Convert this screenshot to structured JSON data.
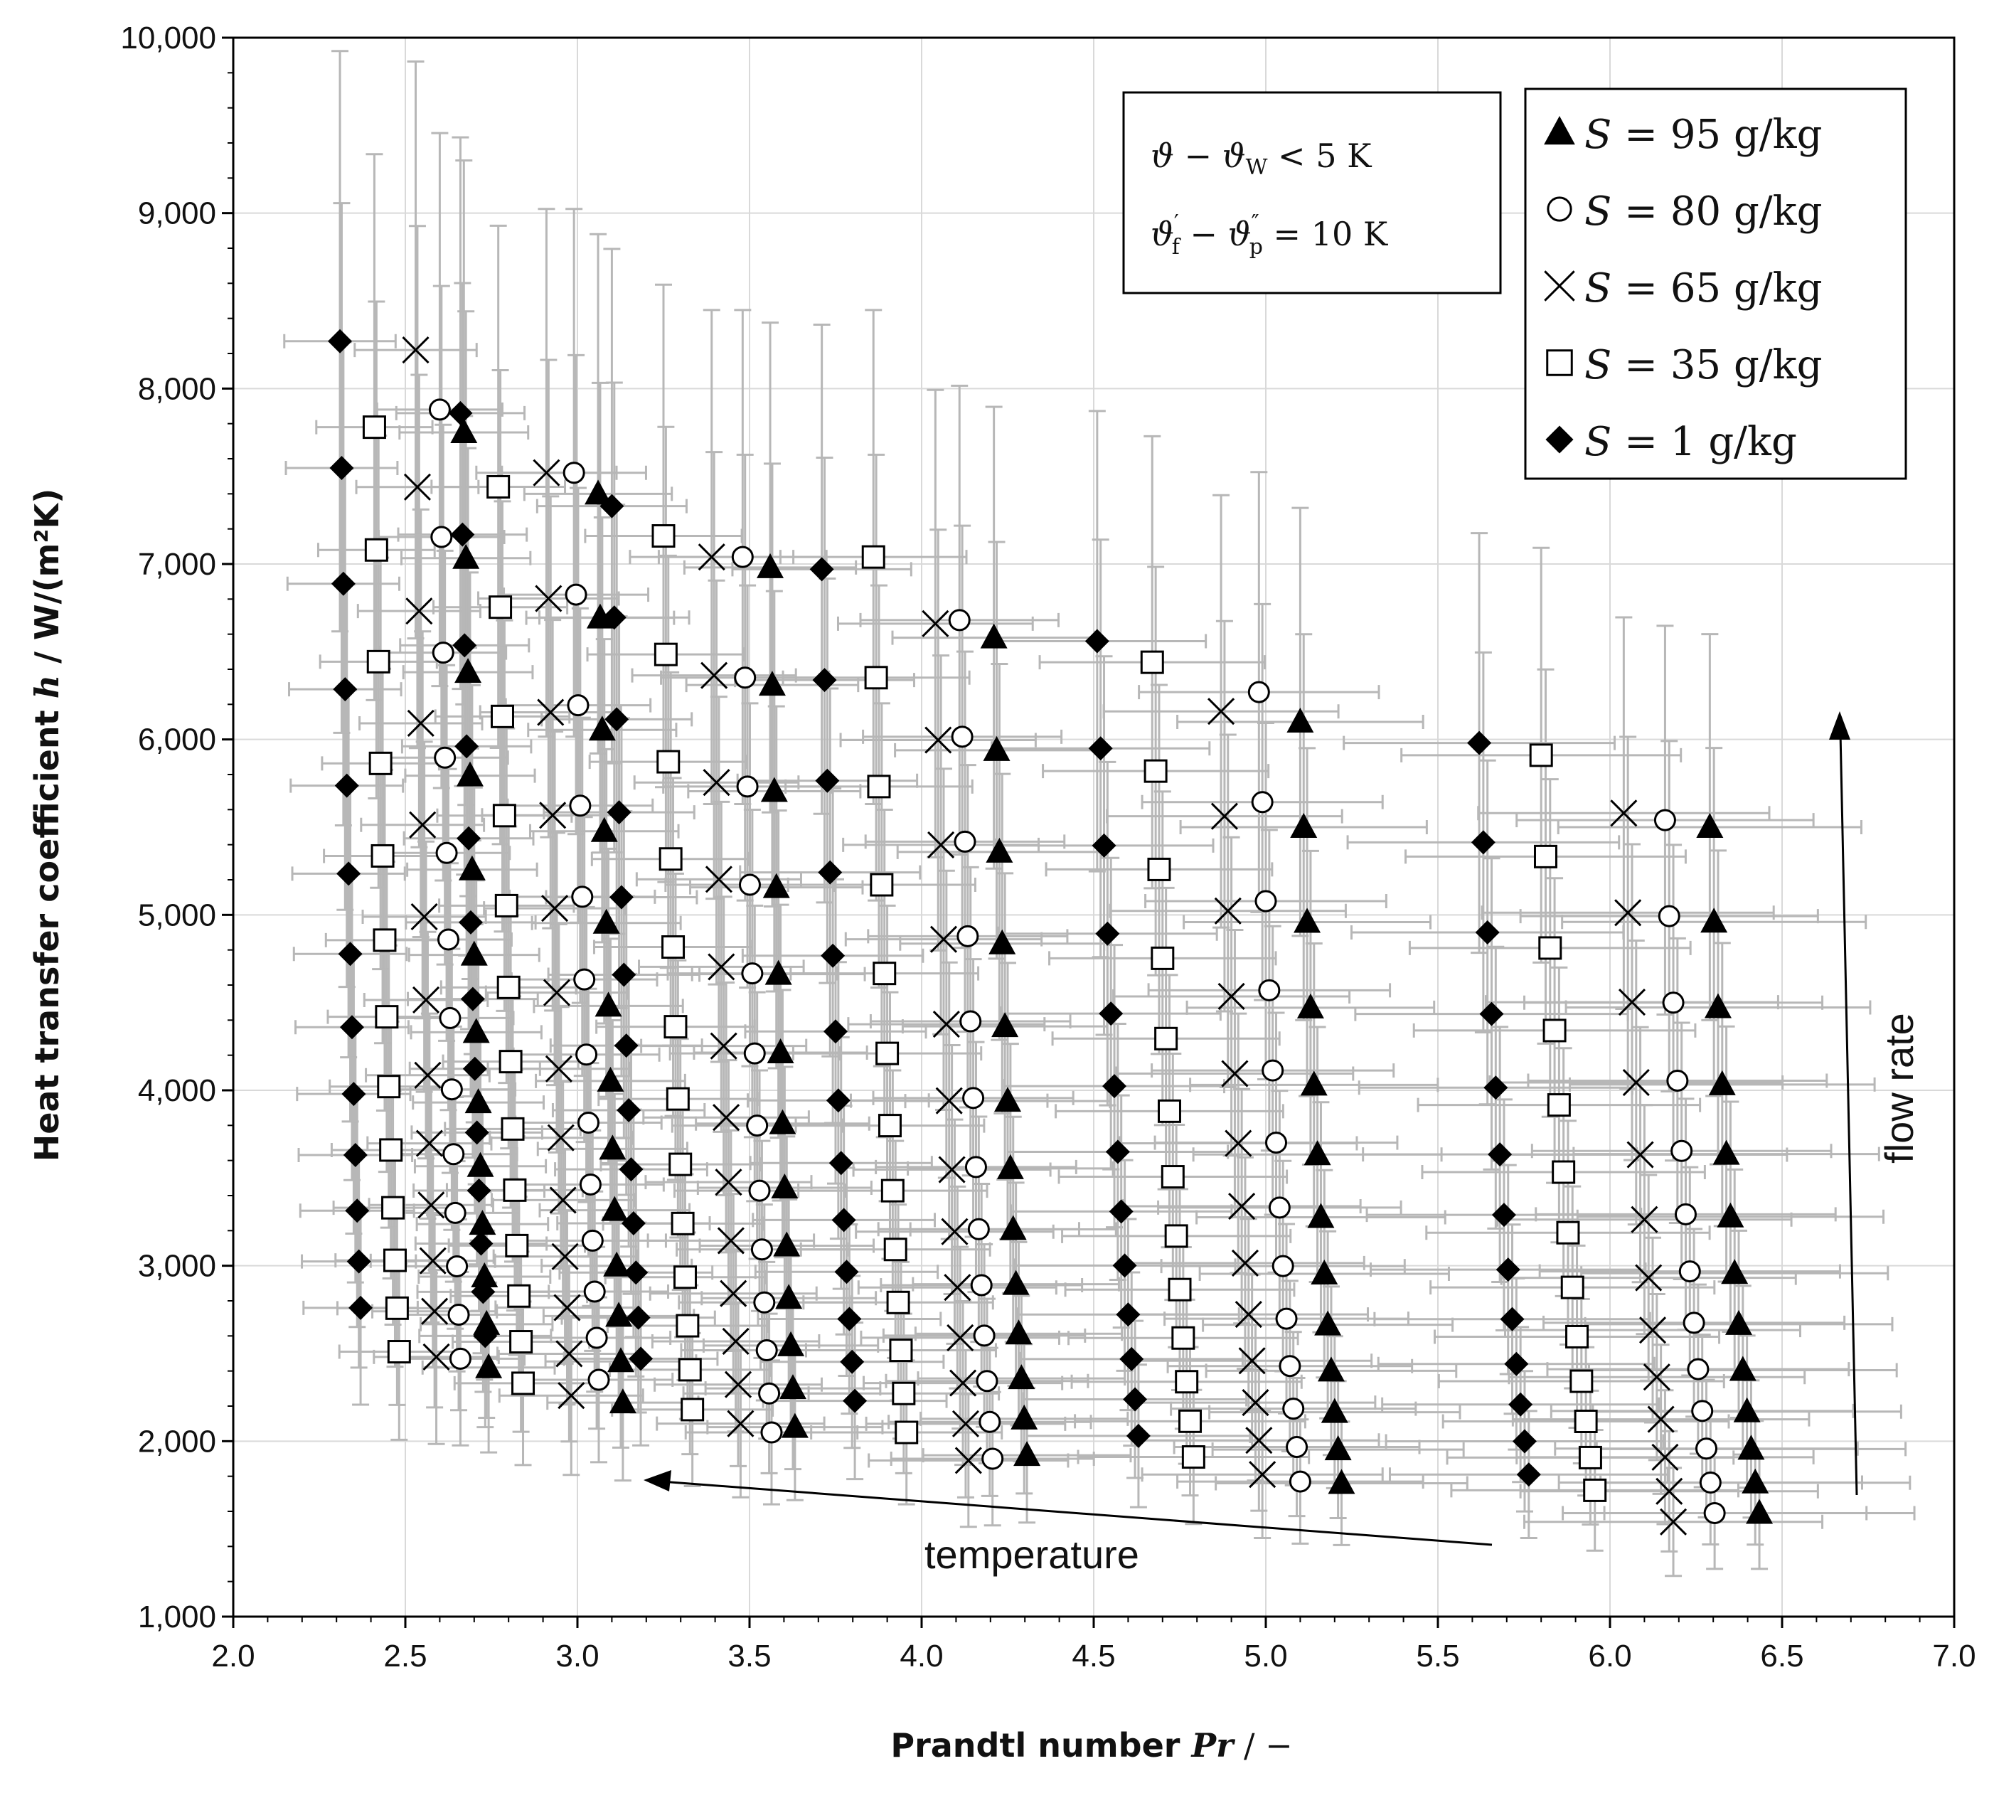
{
  "chart_data": {
    "type": "scatter",
    "x_label": {
      "text": "Prandtl number ",
      "var": "Pr",
      "unit": " / −"
    },
    "y_label": {
      "text": "Heat transfer coefficient ",
      "var": "h",
      "unit": " / W/(m²K)"
    },
    "xlim": [
      2.0,
      7.0
    ],
    "ylim": [
      1000,
      10000
    ],
    "x_ticks": [
      2.0,
      2.5,
      3.0,
      3.5,
      4.0,
      4.5,
      5.0,
      5.5,
      6.0,
      6.5,
      7.0
    ],
    "x_tick_labels": [
      "2.0",
      "2.5",
      "3.0",
      "3.5",
      "4.0",
      "4.5",
      "5.0",
      "5.5",
      "6.0",
      "6.5",
      "7.0"
    ],
    "y_ticks": [
      1000,
      2000,
      3000,
      4000,
      5000,
      6000,
      7000,
      8000,
      9000,
      10000
    ],
    "y_tick_labels": [
      "1,000",
      "2,000",
      "3,000",
      "4,000",
      "5,000",
      "6,000",
      "7,000",
      "8,000",
      "9,000",
      "10,000"
    ],
    "grid": true,
    "conditions": {
      "line1": {
        "lhs": "ϑ − ϑ",
        "sub": "W",
        "rhs": " < 5 K"
      },
      "line2": {
        "a": "ϑ",
        "a_sup": "′",
        "a_sub": "f",
        "b": " − ϑ",
        "b_sup": "″",
        "b_sub": "p",
        "rhs": " = 10 K"
      }
    },
    "annotations": {
      "temperature": "temperature",
      "flow_rate": "flow rate"
    },
    "series": [
      {
        "name": "S = 95 g/kg",
        "var": "S",
        "label_rest": " = 95 g/kg",
        "marker": "triangle",
        "groups": [
          {
            "x0": 2.67,
            "dx": 0.006,
            "y_top": 7750,
            "y_bottom": 2420
          },
          {
            "x0": 3.06,
            "dx": 0.006,
            "y_top": 7400,
            "y_bottom": 2220
          },
          {
            "x0": 3.56,
            "dx": 0.006,
            "y_top": 6980,
            "y_bottom": 2080
          },
          {
            "x0": 4.21,
            "dx": 0.008,
            "y_top": 6580,
            "y_bottom": 1920
          },
          {
            "x0": 5.1,
            "dx": 0.01,
            "y_top": 6100,
            "y_bottom": 1760
          },
          {
            "x0": 6.29,
            "dx": 0.012,
            "y_top": 5500,
            "y_bottom": 1590
          }
        ]
      },
      {
        "name": "S = 80 g/kg",
        "var": "S",
        "label_rest": " = 80 g/kg",
        "marker": "circle",
        "groups": [
          {
            "x0": 2.6,
            "dx": 0.005,
            "y_top": 7880,
            "y_bottom": 2470
          },
          {
            "x0": 2.99,
            "dx": 0.006,
            "y_top": 7520,
            "y_bottom": 2350
          },
          {
            "x0": 3.48,
            "dx": 0.007,
            "y_top": 7040,
            "y_bottom": 2050
          },
          {
            "x0": 4.11,
            "dx": 0.008,
            "y_top": 6680,
            "y_bottom": 1900
          },
          {
            "x0": 4.98,
            "dx": 0.01,
            "y_top": 6270,
            "y_bottom": 1770
          },
          {
            "x0": 6.16,
            "dx": 0.012,
            "y_top": 5540,
            "y_bottom": 1590
          }
        ]
      },
      {
        "name": "S = 65 g/kg",
        "var": "S",
        "label_rest": " = 65 g/kg",
        "marker": "x",
        "groups": [
          {
            "x0": 2.53,
            "dx": 0.005,
            "y_top": 8220,
            "y_bottom": 2480
          },
          {
            "x0": 2.91,
            "dx": 0.006,
            "y_top": 7520,
            "y_bottom": 2260
          },
          {
            "x0": 3.39,
            "dx": 0.007,
            "y_top": 7040,
            "y_bottom": 2100
          },
          {
            "x0": 4.04,
            "dx": 0.008,
            "y_top": 6660,
            "y_bottom": 1890
          },
          {
            "x0": 4.87,
            "dx": 0.01,
            "y_top": 6160,
            "y_bottom": 1810
          },
          {
            "x0": 6.04,
            "dx": 0.012,
            "y_top": 5580,
            "y_bottom": 1540
          }
        ]
      },
      {
        "name": "S = 35 g/kg",
        "var": "S",
        "label_rest": " = 35 g/kg",
        "marker": "square",
        "groups": [
          {
            "x0": 2.41,
            "dx": 0.006,
            "y_top": 7780,
            "y_bottom": 2510
          },
          {
            "x0": 2.77,
            "dx": 0.006,
            "y_top": 7440,
            "y_bottom": 2330
          },
          {
            "x0": 3.25,
            "dx": 0.007,
            "y_top": 7160,
            "y_bottom": 2180
          },
          {
            "x0": 3.86,
            "dx": 0.008,
            "y_top": 7040,
            "y_bottom": 2050
          },
          {
            "x0": 4.67,
            "dx": 0.01,
            "y_top": 6440,
            "y_bottom": 1910
          },
          {
            "x0": 5.8,
            "dx": 0.013,
            "y_top": 5910,
            "y_bottom": 1720
          }
        ]
      },
      {
        "name": "S = 1 g/kg",
        "var": "S",
        "label_rest": " = 1 g/kg",
        "marker": "diamond",
        "groups": [
          {
            "x0": 2.31,
            "dx": 0.005,
            "y_top": 8270,
            "y_bottom": 2760
          },
          {
            "x0": 2.66,
            "dx": 0.006,
            "y_top": 7860,
            "y_bottom": 2600
          },
          {
            "x0": 3.1,
            "dx": 0.007,
            "y_top": 7330,
            "y_bottom": 2470
          },
          {
            "x0": 3.71,
            "dx": 0.008,
            "y_top": 6970,
            "y_bottom": 2230
          },
          {
            "x0": 4.51,
            "dx": 0.01,
            "y_top": 6560,
            "y_bottom": 2030
          },
          {
            "x0": 5.62,
            "dx": 0.012,
            "y_top": 5980,
            "y_bottom": 1810
          }
        ]
      }
    ],
    "points_per_group": 13
  }
}
